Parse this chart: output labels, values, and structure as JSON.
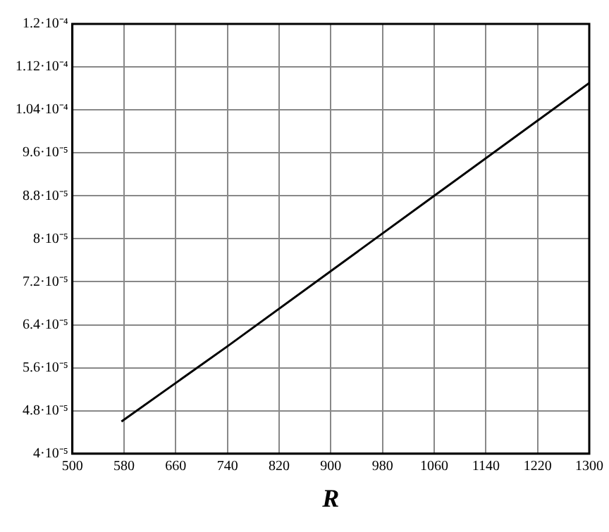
{
  "chart_data": {
    "type": "line",
    "xlabel": "R",
    "x": [
      576,
      740,
      900,
      1060,
      1300
    ],
    "series": [
      {
        "color": "#000000",
        "values": [
          4.6e-05,
          6e-05,
          7.4e-05,
          8.8e-05,
          0.000109
        ]
      }
    ],
    "xlim": [
      500,
      1300
    ],
    "xticks": [
      500,
      580,
      660,
      740,
      820,
      900,
      980,
      1060,
      1140,
      1220,
      1300
    ],
    "ylim": [
      4e-05,
      0.00012
    ],
    "yticks": [
      {
        "value": 4e-05,
        "label": "4·10⁻⁵"
      },
      {
        "value": 4.8e-05,
        "label": "4.8·10⁻⁵"
      },
      {
        "value": 5.6e-05,
        "label": "5.6·10⁻⁵"
      },
      {
        "value": 6.4e-05,
        "label": "6.4·10⁻⁵"
      },
      {
        "value": 7.2e-05,
        "label": "7.2·10⁻⁵"
      },
      {
        "value": 8e-05,
        "label": "8·10⁻⁵"
      },
      {
        "value": 8.8e-05,
        "label": "8.8·10⁻⁵"
      },
      {
        "value": 9.6e-05,
        "label": "9.6·10⁻⁵"
      },
      {
        "value": 0.000104,
        "label": "1.04·10⁻⁴"
      },
      {
        "value": 0.000112,
        "label": "1.12·10⁻⁴"
      },
      {
        "value": 0.00012,
        "label": "1.2·10⁻⁴"
      }
    ],
    "grid": true,
    "legend": false,
    "marker": "none",
    "line_style": "solid"
  }
}
